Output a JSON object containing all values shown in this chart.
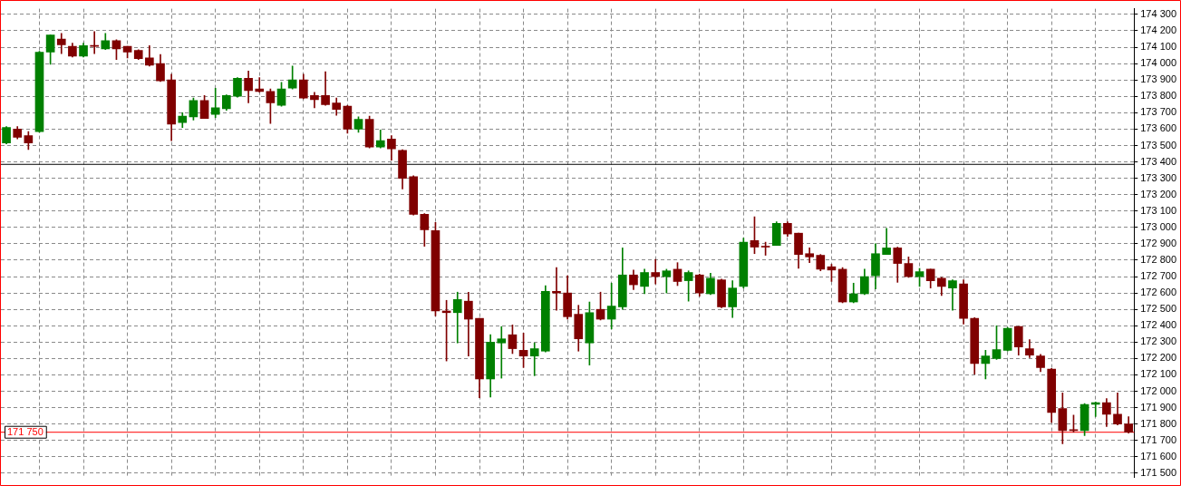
{
  "chart_data": {
    "type": "candlestick",
    "categories": [
      null,
      null,
      null,
      null,
      null,
      null,
      null,
      null,
      null,
      null,
      null,
      null,
      null,
      null,
      null,
      null,
      null,
      null,
      null,
      null,
      null,
      null,
      null,
      null,
      null,
      null,
      null,
      null,
      null,
      null,
      null,
      null,
      null,
      null,
      null,
      null,
      null,
      null,
      null,
      null,
      null,
      null,
      null,
      null,
      null,
      null,
      null,
      null,
      null,
      null,
      null,
      null,
      null,
      null,
      null,
      null,
      null,
      null,
      null,
      null,
      null,
      null,
      null,
      null,
      null,
      null,
      null,
      null,
      null,
      null,
      null,
      null,
      null,
      null,
      null,
      null,
      null,
      null,
      null,
      null,
      null,
      null,
      null,
      null,
      null,
      null,
      null,
      null,
      null,
      null,
      null,
      null,
      null,
      null,
      null,
      null,
      null,
      null,
      null,
      null,
      null,
      null,
      null
    ],
    "ohlc": [
      [
        173515,
        173615,
        173510,
        173610
      ],
      [
        173600,
        173615,
        173540,
        173550
      ],
      [
        173560,
        173585,
        173475,
        173515
      ],
      [
        173585,
        174075,
        173580,
        174070
      ],
      [
        174070,
        174175,
        173995,
        174175
      ],
      [
        174150,
        174185,
        174060,
        174115
      ],
      [
        174105,
        174125,
        174040,
        174045
      ],
      [
        174045,
        174125,
        174040,
        174110
      ],
      [
        174110,
        174195,
        174060,
        174105
      ],
      [
        174090,
        174185,
        174085,
        174140
      ],
      [
        174140,
        174145,
        174025,
        174090
      ],
      [
        174105,
        174105,
        174035,
        174070
      ],
      [
        174080,
        174085,
        174025,
        174030
      ],
      [
        174035,
        174110,
        173985,
        173990
      ],
      [
        174000,
        174055,
        173890,
        173895
      ],
      [
        173900,
        173935,
        173530,
        173630
      ],
      [
        173640,
        173700,
        173610,
        173680
      ],
      [
        173675,
        173790,
        173655,
        173775
      ],
      [
        173775,
        173805,
        173665,
        173665
      ],
      [
        173690,
        173850,
        173670,
        173730
      ],
      [
        173725,
        173810,
        173715,
        173805
      ],
      [
        173800,
        173915,
        173795,
        173910
      ],
      [
        173910,
        173955,
        173760,
        173835
      ],
      [
        173845,
        173915,
        173825,
        173830
      ],
      [
        173830,
        173845,
        173635,
        173760
      ],
      [
        173745,
        173885,
        173740,
        173845
      ],
      [
        173850,
        173985,
        173845,
        173900
      ],
      [
        173900,
        173935,
        173785,
        173790
      ],
      [
        173805,
        173825,
        173730,
        173780
      ],
      [
        173805,
        173950,
        173745,
        173750
      ],
      [
        173760,
        173790,
        173685,
        173720
      ],
      [
        173740,
        173745,
        173575,
        173600
      ],
      [
        173600,
        173675,
        173580,
        173660
      ],
      [
        173660,
        173680,
        173485,
        173490
      ],
      [
        173490,
        173595,
        173485,
        173530
      ],
      [
        173540,
        173560,
        173410,
        173480
      ],
      [
        173470,
        173475,
        173235,
        173300
      ],
      [
        173310,
        173315,
        173075,
        173080
      ],
      [
        173080,
        173085,
        172885,
        172985
      ],
      [
        172980,
        173030,
        172460,
        172490
      ],
      [
        172490,
        172555,
        172185,
        172480
      ],
      [
        172480,
        172605,
        172295,
        172560
      ],
      [
        172550,
        172605,
        172215,
        172440
      ],
      [
        172445,
        172445,
        171960,
        172075
      ],
      [
        172075,
        172345,
        171965,
        172300
      ],
      [
        172295,
        172395,
        172080,
        172320
      ],
      [
        172345,
        172405,
        172230,
        172260
      ],
      [
        172250,
        172355,
        172145,
        172215
      ],
      [
        172215,
        172295,
        172095,
        172260
      ],
      [
        172245,
        172645,
        172240,
        172610
      ],
      [
        172610,
        172755,
        172495,
        172600
      ],
      [
        172600,
        172705,
        172440,
        172455
      ],
      [
        172470,
        172525,
        172245,
        172320
      ],
      [
        172295,
        172545,
        172160,
        172480
      ],
      [
        172500,
        172605,
        172435,
        172440
      ],
      [
        172440,
        172660,
        172380,
        172520
      ],
      [
        172515,
        172875,
        172500,
        172710
      ],
      [
        172710,
        172740,
        172620,
        172650
      ],
      [
        172640,
        172745,
        172595,
        172725
      ],
      [
        172725,
        172805,
        172655,
        172700
      ],
      [
        172700,
        172745,
        172600,
        172735
      ],
      [
        172745,
        172785,
        172645,
        172670
      ],
      [
        172675,
        172735,
        172550,
        172725
      ],
      [
        172710,
        172715,
        172580,
        172600
      ],
      [
        172595,
        172720,
        172590,
        172690
      ],
      [
        172680,
        172685,
        172510,
        172515
      ],
      [
        172515,
        172675,
        172450,
        172630
      ],
      [
        172640,
        172935,
        172630,
        172910
      ],
      [
        172920,
        173065,
        172840,
        172880
      ],
      [
        172885,
        172910,
        172830,
        172880
      ],
      [
        172890,
        173035,
        172890,
        173025
      ],
      [
        173025,
        173035,
        172945,
        172960
      ],
      [
        172965,
        172965,
        172750,
        172835
      ],
      [
        172840,
        172875,
        172785,
        172820
      ],
      [
        172830,
        172835,
        172735,
        172745
      ],
      [
        172760,
        172775,
        172670,
        172740
      ],
      [
        172745,
        172755,
        172540,
        172545
      ],
      [
        172545,
        172660,
        172540,
        172595
      ],
      [
        172595,
        172745,
        172590,
        172700
      ],
      [
        172705,
        172900,
        172625,
        172840
      ],
      [
        172835,
        172995,
        172835,
        172875
      ],
      [
        172875,
        172880,
        172665,
        172780
      ],
      [
        172780,
        172820,
        172695,
        172700
      ],
      [
        172700,
        172750,
        172640,
        172730
      ],
      [
        172745,
        172745,
        172630,
        172675
      ],
      [
        172690,
        172695,
        172585,
        172640
      ],
      [
        172630,
        172680,
        172495,
        172675
      ],
      [
        172655,
        172680,
        172410,
        172445
      ],
      [
        172445,
        172450,
        172105,
        172170
      ],
      [
        172170,
        172250,
        172075,
        172215
      ],
      [
        172200,
        172400,
        172195,
        172255
      ],
      [
        172250,
        172390,
        172245,
        172385
      ],
      [
        172395,
        172395,
        172220,
        172270
      ],
      [
        172260,
        172315,
        172205,
        172220
      ],
      [
        172215,
        172225,
        172120,
        172145
      ],
      [
        172135,
        172140,
        171810,
        171870
      ],
      [
        171895,
        171990,
        171680,
        171760
      ],
      [
        171765,
        171855,
        171750,
        171760
      ],
      [
        171760,
        171925,
        171730,
        171920
      ],
      [
        171920,
        171935,
        171845,
        171930
      ],
      [
        171930,
        171955,
        171785,
        171860
      ],
      [
        171860,
        171990,
        171795,
        171800
      ],
      [
        171800,
        171845,
        171745,
        171750
      ]
    ],
    "colors": [
      "#008000",
      "#800000",
      "#800000",
      "#008000",
      "#008000",
      "#800000",
      "#800000",
      "#008000",
      "#800000",
      "#008000",
      "#800000",
      "#800000",
      "#800000",
      "#800000",
      "#800000",
      "#800000",
      "#008000",
      "#008000",
      "#800000",
      "#008000",
      "#008000",
      "#008000",
      "#800000",
      "#800000",
      "#800000",
      "#008000",
      "#008000",
      "#800000",
      "#800000",
      "#800000",
      "#800000",
      "#800000",
      "#008000",
      "#800000",
      "#008000",
      "#800000",
      "#800000",
      "#800000",
      "#800000",
      "#800000",
      "#800000",
      "#008000",
      "#800000",
      "#800000",
      "#008000",
      "#008000",
      "#800000",
      "#800000",
      "#008000",
      "#008000",
      "#800000",
      "#800000",
      "#800000",
      "#008000",
      "#800000",
      "#008000",
      "#008000",
      "#800000",
      "#008000",
      "#800000",
      "#008000",
      "#800000",
      "#008000",
      "#800000",
      "#008000",
      "#800000",
      "#008000",
      "#008000",
      "#800000",
      "#800000",
      "#008000",
      "#800000",
      "#800000",
      "#800000",
      "#800000",
      "#800000",
      "#800000",
      "#008000",
      "#008000",
      "#008000",
      "#008000",
      "#800000",
      "#800000",
      "#008000",
      "#800000",
      "#800000",
      "#008000",
      "#800000",
      "#800000",
      "#008000",
      "#008000",
      "#008000",
      "#800000",
      "#800000",
      "#800000",
      "#800000",
      "#800000",
      "#800000",
      "#008000",
      "#008000",
      "#800000",
      "#800000",
      "#800000"
    ],
    "ylim": [
      171475,
      174335
    ],
    "yticks": [
      {
        "value": 171500,
        "label": "171 500"
      },
      {
        "value": 171600,
        "label": "171 600"
      },
      {
        "value": 171700,
        "label": "171 700"
      },
      {
        "value": 171800,
        "label": "171 800"
      },
      {
        "value": 171900,
        "label": "171 900"
      },
      {
        "value": 172000,
        "label": "172 000"
      },
      {
        "value": 172100,
        "label": "172 100"
      },
      {
        "value": 172200,
        "label": "172 200"
      },
      {
        "value": 172300,
        "label": "172 300"
      },
      {
        "value": 172400,
        "label": "172 400"
      },
      {
        "value": 172500,
        "label": "172 500"
      },
      {
        "value": 172600,
        "label": "172 600"
      },
      {
        "value": 172700,
        "label": "172 700"
      },
      {
        "value": 172800,
        "label": "172 800"
      },
      {
        "value": 172900,
        "label": "172 900"
      },
      {
        "value": 173000,
        "label": "173 000"
      },
      {
        "value": 173100,
        "label": "173 100"
      },
      {
        "value": 173200,
        "label": "173 200"
      },
      {
        "value": 173300,
        "label": "173 300"
      },
      {
        "value": 173400,
        "label": "173 400"
      },
      {
        "value": 173500,
        "label": "173 500"
      },
      {
        "value": 173600,
        "label": "173 600"
      },
      {
        "value": 173700,
        "label": "173 700"
      },
      {
        "value": 173800,
        "label": "173 800"
      },
      {
        "value": 173900,
        "label": "173 900"
      },
      {
        "value": 174000,
        "label": "174 000"
      },
      {
        "value": 174100,
        "label": "174 100"
      },
      {
        "value": 174200,
        "label": "174 200"
      },
      {
        "value": 174300,
        "label": "174 300"
      }
    ],
    "grid": true,
    "tick_labels": "y",
    "ref_lines": [
      {
        "axis": "y",
        "value": 173385,
        "color": "#000000"
      },
      {
        "axis": "y",
        "value": 171750,
        "label": "171 750",
        "color": "#ff0000"
      }
    ]
  }
}
